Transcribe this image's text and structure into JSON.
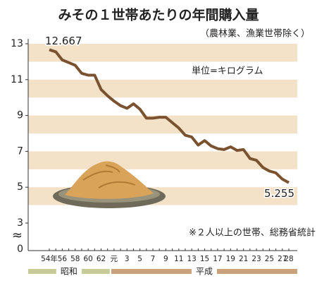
{
  "chart_data": {
    "type": "line",
    "title": "みその１世帯あたりの年間購入量",
    "subtitle": "（農林業、漁業世帯除く）",
    "unit_label": "単位=キログラム",
    "note": "※２人以上の世帯、総務省統計",
    "categories": [
      "54年",
      null,
      "56",
      null,
      "58",
      null,
      "60",
      null,
      "62",
      null,
      "元",
      null,
      "3",
      null,
      "5",
      null,
      "7",
      null,
      "9",
      null,
      "11",
      null,
      "13",
      null,
      "15",
      null,
      "17",
      null,
      "19",
      null,
      "21",
      null,
      "23",
      null,
      "25",
      null,
      "27",
      "28"
    ],
    "series": [
      {
        "name": "年間購入量",
        "color": "#7a5230",
        "values": [
          12.667,
          12.55,
          12.1,
          11.95,
          11.8,
          11.35,
          11.25,
          11.25,
          10.45,
          10.1,
          9.8,
          9.55,
          9.4,
          9.65,
          9.35,
          8.85,
          8.85,
          8.9,
          8.9,
          8.6,
          8.3,
          7.9,
          7.8,
          7.35,
          7.6,
          7.3,
          7.15,
          7.1,
          7.25,
          7.05,
          7.1,
          6.6,
          6.5,
          6.1,
          5.9,
          5.8,
          5.45,
          5.255
        ],
        "value_labels": [
          "12.667",
          null,
          null,
          null,
          null,
          null,
          null,
          null,
          null,
          null,
          null,
          null,
          null,
          null,
          null,
          null,
          null,
          null,
          null,
          null,
          null,
          null,
          null,
          null,
          null,
          null,
          null,
          null,
          null,
          null,
          null,
          null,
          null,
          null,
          null,
          null,
          null,
          "5.255"
        ]
      }
    ],
    "ylim": [
      3,
      13
    ],
    "yticks": [
      3,
      5,
      7,
      9,
      11,
      13
    ],
    "y_break_label": "0",
    "break_symbol": "≈",
    "eras": [
      {
        "label": "昭和",
        "first": "54年",
        "color": "#c5cc97"
      },
      {
        "label": "平成",
        "first": "元",
        "color": "#c9a27c"
      }
    ]
  }
}
